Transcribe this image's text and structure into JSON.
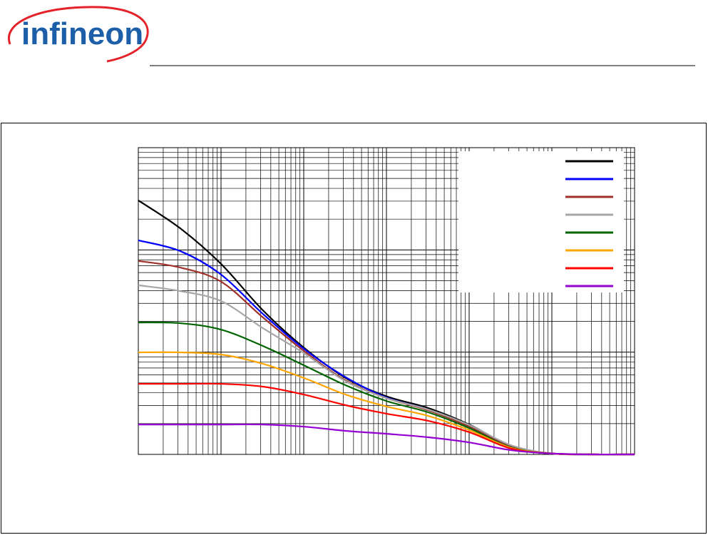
{
  "logo": "infineon",
  "chart_data": {
    "type": "line",
    "log_x": true,
    "log_y": true,
    "grid": true,
    "legend": "upper right",
    "xlim": [
      1e-06,
      1
    ],
    "ylim": [
      0.1,
      100
    ],
    "x": [
      1e-06,
      3.2e-06,
      1e-05,
      3.2e-05,
      0.0001,
      0.00032,
      0.001,
      0.0032,
      0.01,
      0.032,
      0.1,
      0.32,
      1
    ],
    "series": [
      {
        "color": "#000000",
        "values": [
          30.5,
          16.3,
          7.3,
          2.57,
          1.11,
          0.56,
          0.37,
          0.284,
          0.196,
          0.121,
          0.102,
          0.1,
          0.1
        ]
      },
      {
        "color": "#0000ff",
        "values": [
          12.4,
          9.75,
          5.74,
          2.37,
          1.08,
          0.57,
          0.36,
          0.275,
          0.19,
          0.119,
          0.102,
          0.1,
          0.1
        ]
      },
      {
        "color": "#a0302a",
        "values": [
          7.8,
          6.73,
          4.89,
          2.19,
          1.03,
          0.53,
          0.355,
          0.27,
          0.187,
          0.119,
          0.102,
          0.1,
          0.1
        ]
      },
      {
        "color": "#a6a6a6",
        "values": [
          4.51,
          3.96,
          3.16,
          1.72,
          0.98,
          0.52,
          0.355,
          0.275,
          0.194,
          0.123,
          0.102,
          0.1,
          0.1
        ]
      },
      {
        "color": "#006400",
        "values": [
          1.95,
          1.92,
          1.66,
          1.15,
          0.745,
          0.475,
          0.333,
          0.258,
          0.181,
          0.117,
          0.102,
          0.1,
          0.1
        ]
      },
      {
        "color": "#ffa500",
        "values": [
          0.995,
          0.995,
          0.948,
          0.77,
          0.56,
          0.385,
          0.294,
          0.238,
          0.173,
          0.116,
          0.102,
          0.1,
          0.1
        ]
      },
      {
        "color": "#ff0000",
        "values": [
          0.49,
          0.49,
          0.49,
          0.46,
          0.385,
          0.303,
          0.25,
          0.213,
          0.165,
          0.114,
          0.102,
          0.1,
          0.1
        ]
      },
      {
        "color": "#9400d3",
        "values": [
          0.196,
          0.196,
          0.196,
          0.196,
          0.187,
          0.17,
          0.159,
          0.147,
          0.131,
          0.11,
          0.102,
          0.1,
          0.1
        ]
      }
    ]
  }
}
